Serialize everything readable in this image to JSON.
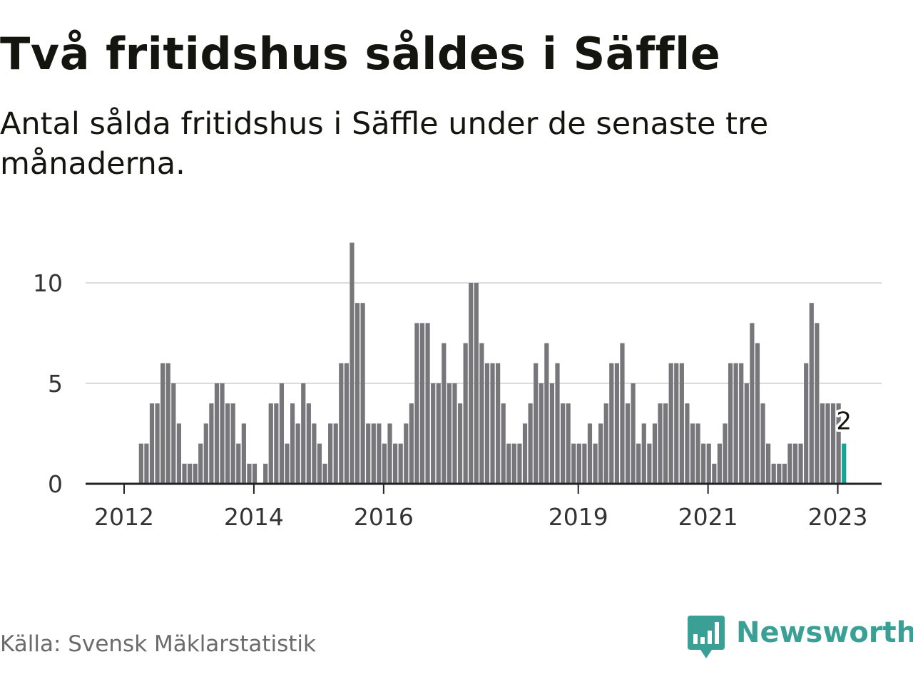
{
  "title": "Två fritidshus såldes i Säffle",
  "subtitle": "Antal sålda fritidshus i Säffle under de senaste tre månaderna.",
  "source": "Källa: Svensk Mäklarstatistik",
  "brand": {
    "name": "Newsworthy",
    "icon": "newsworthy-logo-icon",
    "color": "#3aa095"
  },
  "colors": {
    "bar": "#77767b",
    "highlight": "#16a394",
    "gridline": "#dcdcdc",
    "axis": "#222222",
    "text": "#15150f",
    "source": "#6b6b6b"
  },
  "chart_data": {
    "type": "bar",
    "series": [
      {
        "values": [
          0,
          0,
          0,
          2,
          2,
          4,
          4,
          6,
          6,
          5,
          3,
          1,
          1,
          1,
          2,
          3,
          4,
          5,
          5,
          4,
          4,
          2,
          3,
          1,
          1,
          0,
          1,
          4,
          4,
          5,
          2,
          4,
          3,
          5,
          4,
          3,
          2,
          1,
          3,
          3,
          6,
          6,
          12,
          9,
          9,
          3,
          3,
          3,
          2,
          3,
          2,
          2,
          3,
          4,
          8,
          8,
          8,
          5,
          5,
          7,
          5,
          5,
          4,
          7,
          10,
          10,
          7,
          6,
          6,
          6,
          4,
          2,
          2,
          2,
          3,
          4,
          6,
          5,
          7,
          5,
          6,
          4,
          4,
          2,
          2,
          2,
          3,
          2,
          3,
          4,
          6,
          6,
          7,
          4,
          5,
          2,
          3,
          2,
          3,
          4,
          4,
          6,
          6,
          6,
          4,
          3,
          3,
          2,
          2,
          1,
          2,
          3,
          6,
          6,
          6,
          5,
          8,
          7,
          4,
          2,
          1,
          1,
          1,
          2,
          2,
          2,
          6,
          9,
          8,
          4,
          4,
          4,
          4,
          2
        ]
      }
    ],
    "highlight_last": true,
    "last_value_label": "2",
    "y_ticks": [
      "0",
      "5",
      "10"
    ],
    "x_ticks": [
      "2012",
      "2014",
      "2016",
      "2019",
      "2021",
      "2023"
    ],
    "ylim": [
      0,
      12
    ],
    "grid": true,
    "legend": "none"
  }
}
